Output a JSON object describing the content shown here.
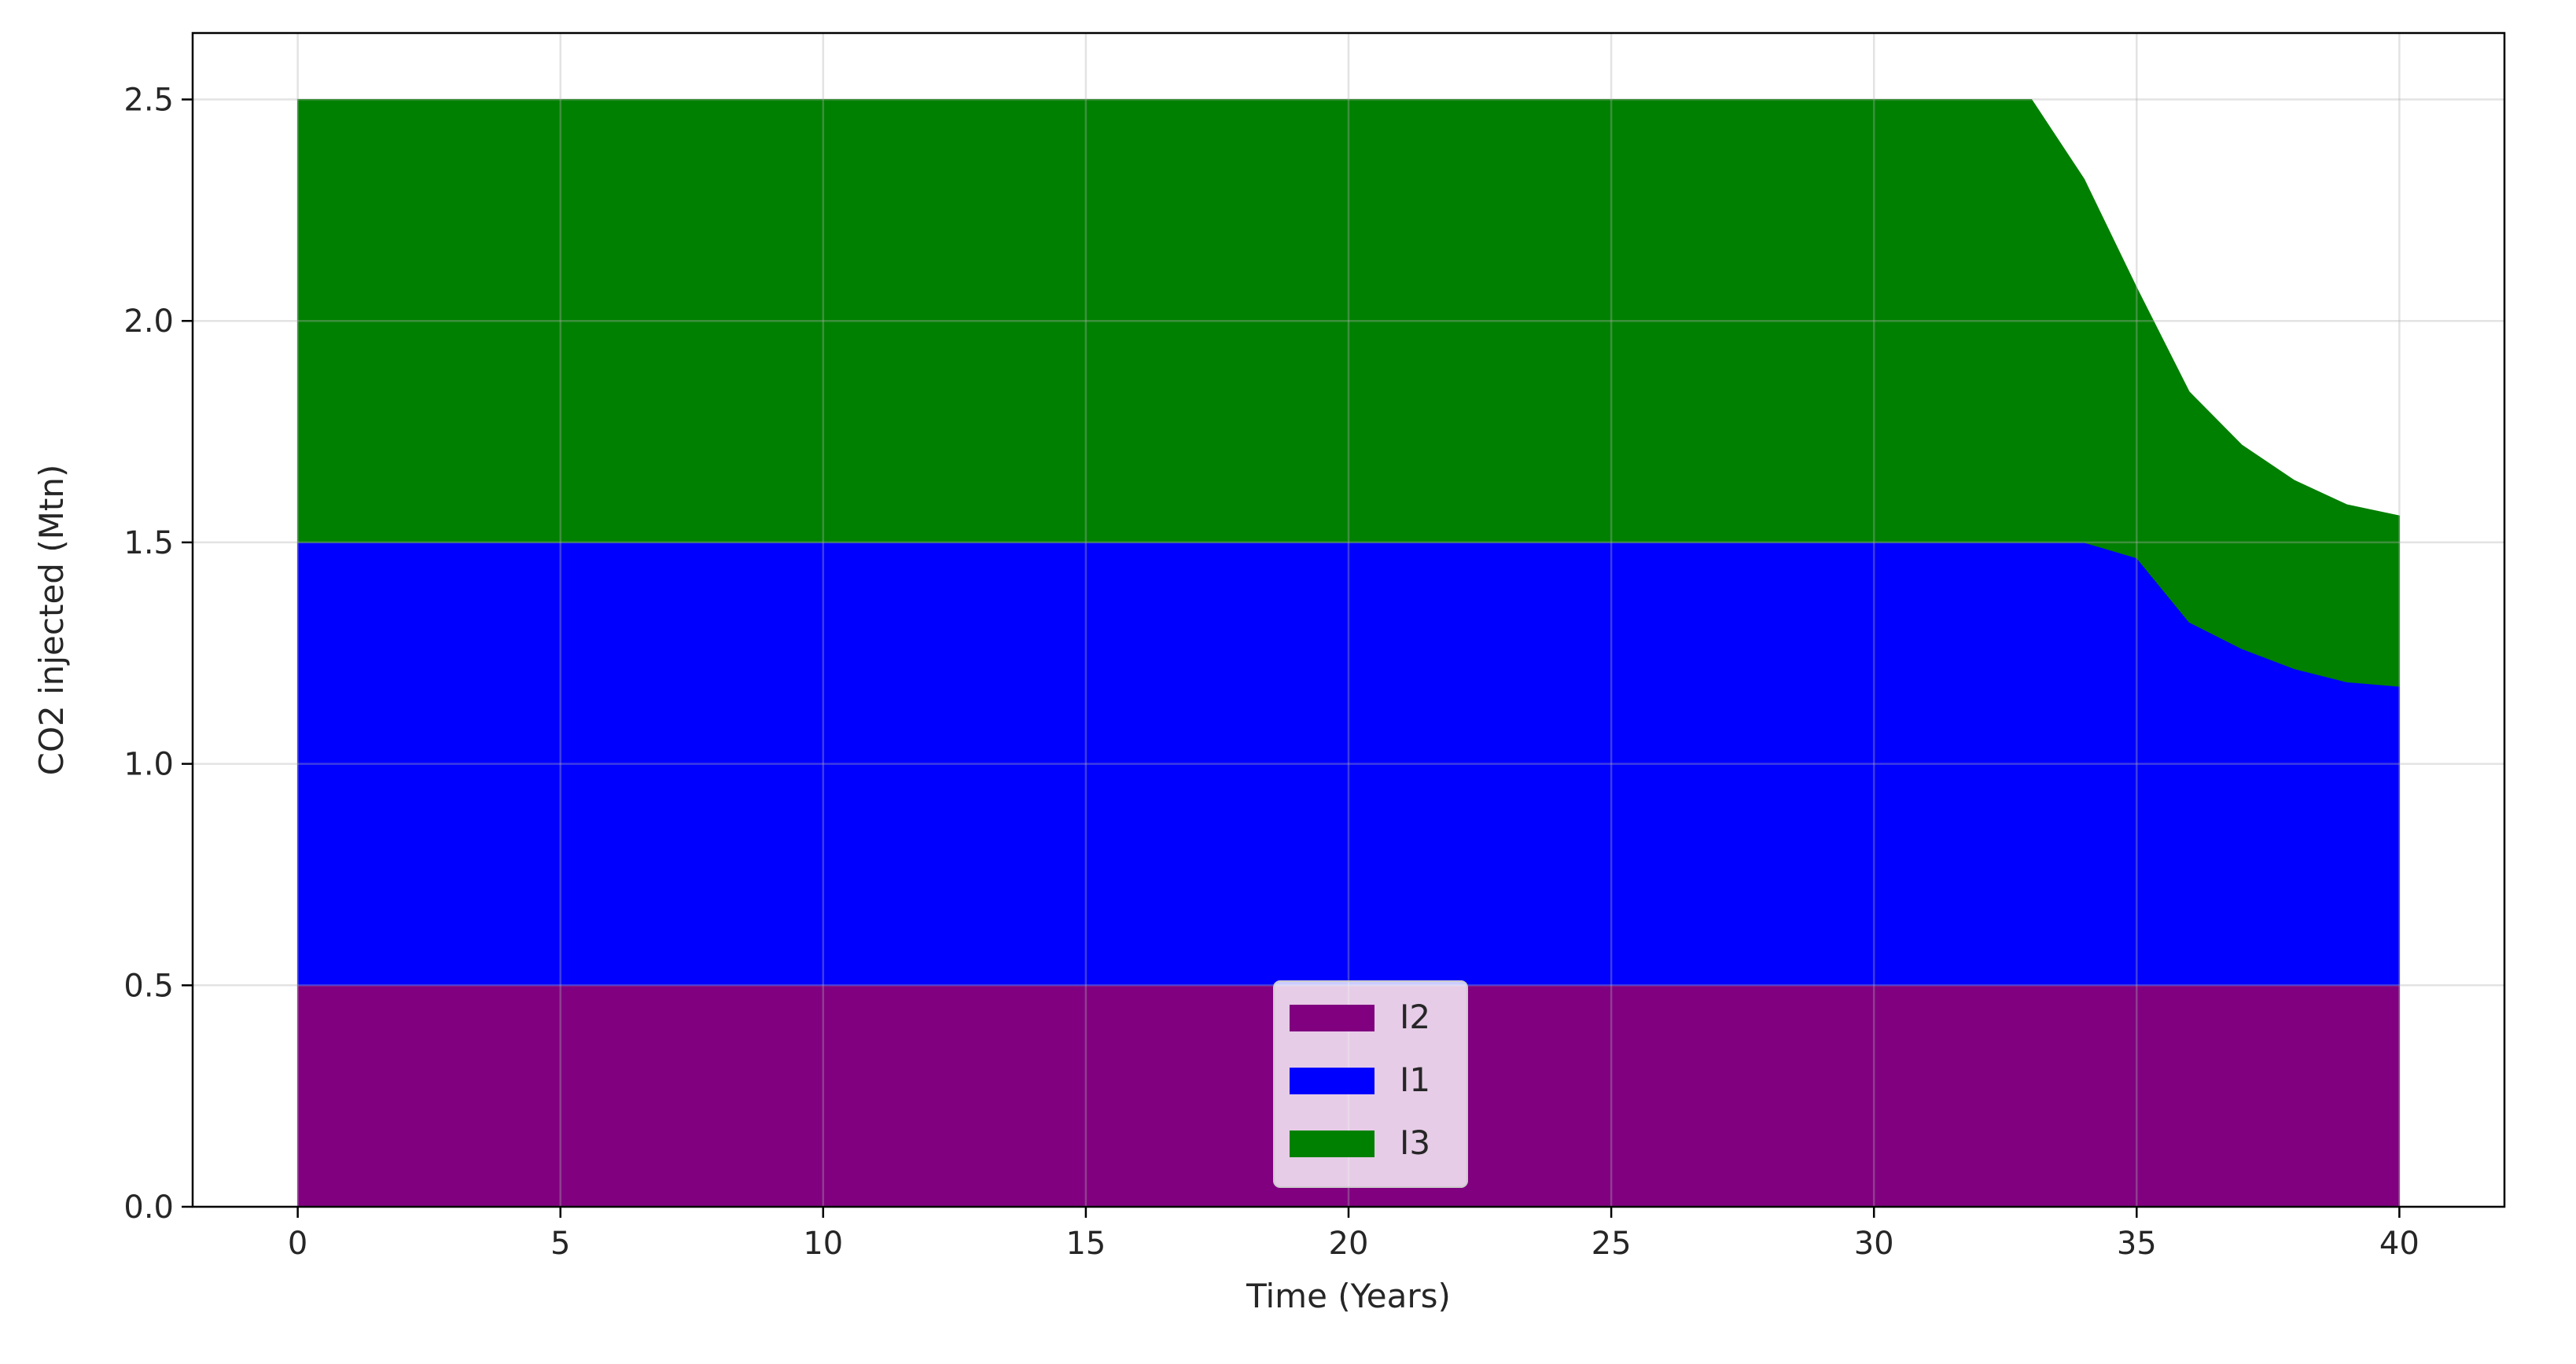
{
  "chart_data": {
    "type": "area",
    "stacked": true,
    "xlabel": "Time (Years)",
    "ylabel": "CO2 injected (Mtn)",
    "xlim": [
      -2,
      42
    ],
    "ylim": [
      0,
      2.65
    ],
    "xticks": [
      0,
      5,
      10,
      15,
      20,
      25,
      30,
      35,
      40
    ],
    "yticks": [
      0.0,
      0.5,
      1.0,
      1.5,
      2.0,
      2.5
    ],
    "x": [
      0,
      33,
      34,
      35,
      36,
      37,
      38,
      39,
      40
    ],
    "grid": true,
    "legend_position": "lower-center",
    "series": [
      {
        "name": "I2",
        "color": "#800080",
        "values": [
          0.5,
          0.5,
          0.5,
          0.5,
          0.5,
          0.5,
          0.5,
          0.5,
          0.5
        ]
      },
      {
        "name": "I1",
        "color": "#0000ff",
        "values": [
          1.0,
          1.0,
          1.0,
          0.965,
          0.82,
          0.76,
          0.715,
          0.685,
          0.675
        ]
      },
      {
        "name": "I3",
        "color": "#008000",
        "values": [
          1.0,
          1.0,
          0.82,
          0.61,
          0.52,
          0.46,
          0.425,
          0.4,
          0.385
        ]
      }
    ]
  }
}
